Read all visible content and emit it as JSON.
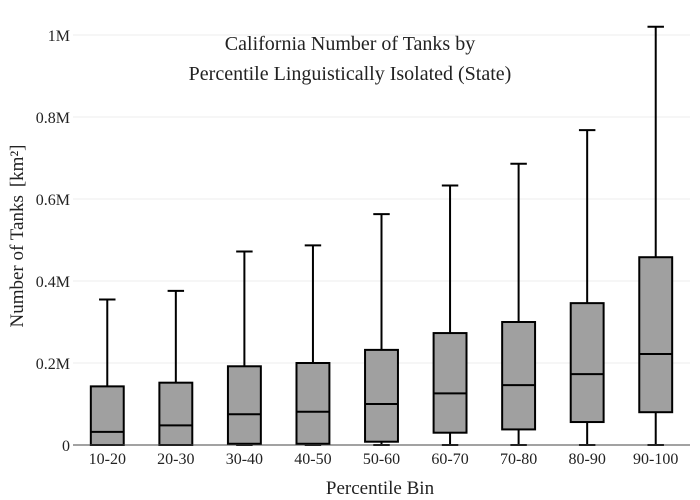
{
  "chart_data": {
    "type": "box",
    "title_lines": [
      "California Number of Tanks by",
      "Percentile Linguistically Isolated (State)"
    ],
    "xlabel": "Percentile Bin",
    "ylabel": "Number of Tanks",
    "ylabel_unit": "[km²]",
    "ylim": [
      0,
      1000000
    ],
    "y_ticks": [
      0,
      200000,
      400000,
      600000,
      800000,
      1000000
    ],
    "y_tick_labels": [
      "0",
      "0.2M",
      "0.4M",
      "0.6M",
      "0.8M",
      "1M"
    ],
    "grid": true,
    "box_color": "#a0a0a0",
    "categories": [
      "10-20",
      "20-30",
      "30-40",
      "40-50",
      "50-60",
      "60-70",
      "70-80",
      "80-90",
      "90-100"
    ],
    "boxes": [
      {
        "min": 0,
        "q1": 0,
        "median": 32000,
        "q3": 143000,
        "max": 355000
      },
      {
        "min": 0,
        "q1": 0,
        "median": 48000,
        "q3": 152000,
        "max": 376000
      },
      {
        "min": 0,
        "q1": 3000,
        "median": 75000,
        "q3": 192000,
        "max": 472000
      },
      {
        "min": 0,
        "q1": 3000,
        "median": 81000,
        "q3": 200000,
        "max": 487000
      },
      {
        "min": 0,
        "q1": 8000,
        "median": 100000,
        "q3": 232000,
        "max": 563000
      },
      {
        "min": 0,
        "q1": 30000,
        "median": 126000,
        "q3": 273000,
        "max": 633000
      },
      {
        "min": 0,
        "q1": 38000,
        "median": 146000,
        "q3": 300000,
        "max": 686000
      },
      {
        "min": 0,
        "q1": 56000,
        "median": 173000,
        "q3": 346000,
        "max": 768000
      },
      {
        "min": 0,
        "q1": 80000,
        "median": 222000,
        "q3": 458000,
        "max": 1020000
      }
    ]
  }
}
